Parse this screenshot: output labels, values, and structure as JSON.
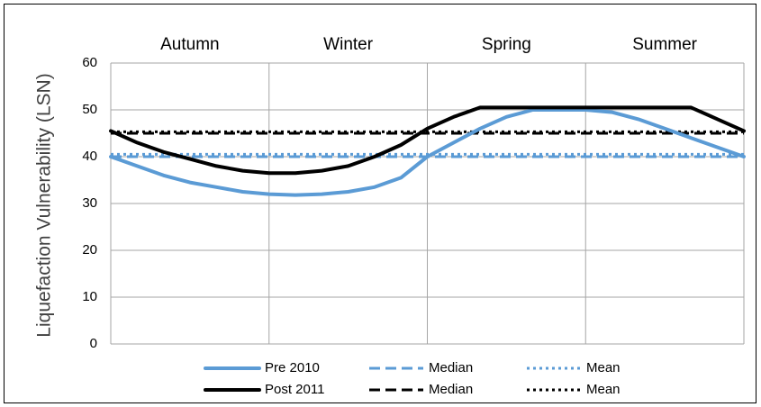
{
  "chart_data": {
    "type": "line",
    "ylabel": "Liquefaction Vulnerability (LSN)",
    "xlabel": "",
    "ylim": [
      0,
      60
    ],
    "yticks": [
      0,
      10,
      20,
      30,
      40,
      50,
      60
    ],
    "x_range": [
      0,
      12
    ],
    "x_gridlines": [
      3,
      6,
      9
    ],
    "y_gridlines": [
      10,
      20,
      30,
      40,
      50,
      60
    ],
    "season_labels": [
      {
        "label": "Autumn",
        "x": 1.5
      },
      {
        "label": "Winter",
        "x": 4.5
      },
      {
        "label": "Spring",
        "x": 7.5
      },
      {
        "label": "Summer",
        "x": 10.5
      }
    ],
    "legend_position": "bottom",
    "series": [
      {
        "name": "Pre 2010",
        "color": "#5b9bd5",
        "style": "solid",
        "x": [
          0,
          0.5,
          1,
          1.5,
          2,
          2.5,
          3,
          3.5,
          4,
          4.5,
          5,
          5.5,
          6,
          6.5,
          7,
          7.5,
          8,
          8.5,
          9,
          9.5,
          10,
          10.5,
          11,
          11.5,
          12
        ],
        "values": [
          40,
          38,
          36,
          34.5,
          33.5,
          32.5,
          32,
          31.8,
          32,
          32.5,
          33.5,
          35.5,
          40,
          43,
          46,
          48.5,
          50,
          50,
          50,
          49.5,
          48,
          46,
          44,
          42,
          40
        ]
      },
      {
        "name": "Median",
        "color": "#5b9bd5",
        "style": "dashed",
        "x": [
          0,
          12
        ],
        "values": [
          40,
          40
        ]
      },
      {
        "name": "Mean",
        "color": "#5b9bd5",
        "style": "dotted",
        "x": [
          0,
          12
        ],
        "values": [
          40.5,
          40.5
        ]
      },
      {
        "name": "Post 2011",
        "color": "#000000",
        "style": "solid",
        "x": [
          0,
          0.5,
          1,
          1.5,
          2,
          2.5,
          3,
          3.5,
          4,
          4.5,
          5,
          5.5,
          6,
          6.5,
          7,
          7.5,
          8,
          8.5,
          9,
          9.5,
          10,
          10.5,
          11,
          11.5,
          12
        ],
        "values": [
          45.5,
          43,
          41,
          39.5,
          38,
          37,
          36.5,
          36.5,
          37,
          38,
          40,
          42.5,
          46,
          48.5,
          50.5,
          50.5,
          50.5,
          50.5,
          50.5,
          50.5,
          50.5,
          50.5,
          50.5,
          48,
          45.5
        ]
      },
      {
        "name": "Median",
        "color": "#000000",
        "style": "dashed",
        "x": [
          0,
          12
        ],
        "values": [
          45,
          45
        ]
      },
      {
        "name": "Mean",
        "color": "#000000",
        "style": "dotted",
        "x": [
          0,
          12
        ],
        "values": [
          45.3,
          45.3
        ]
      }
    ],
    "legend_rows": [
      [
        0,
        1,
        2
      ],
      [
        3,
        4,
        5
      ]
    ]
  }
}
